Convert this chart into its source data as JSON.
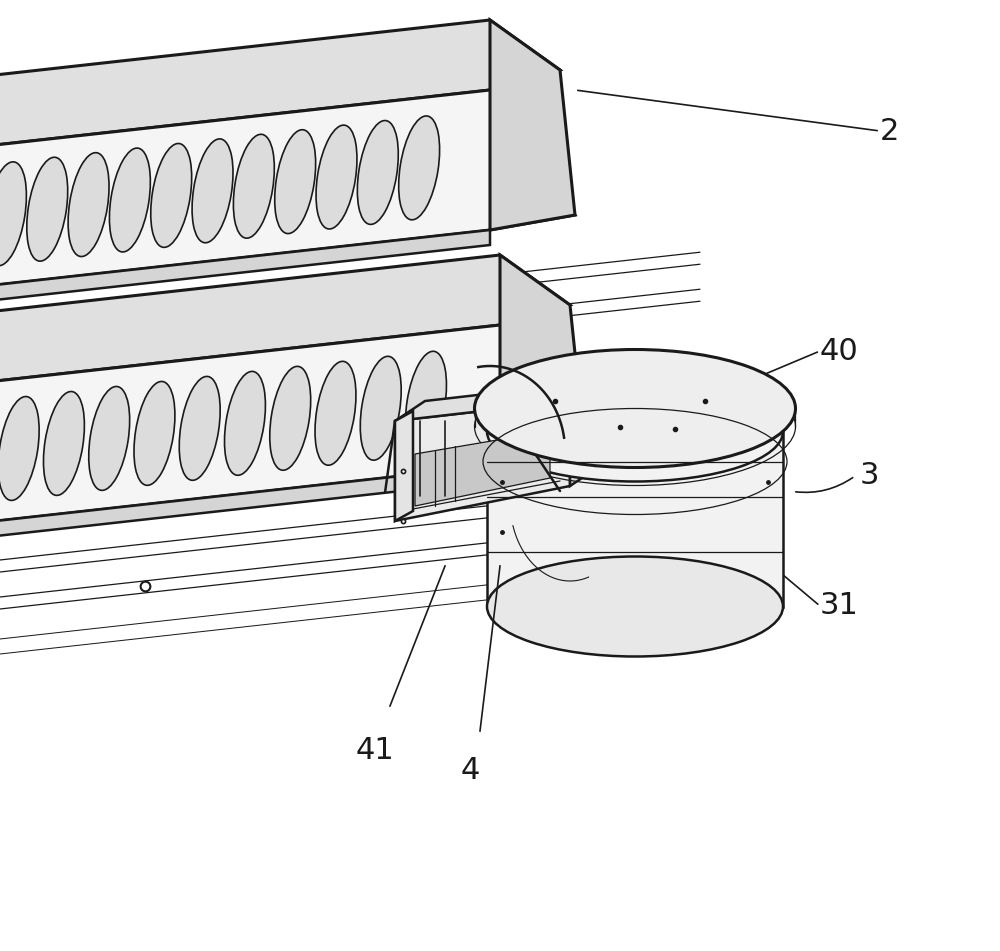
{
  "bg_color": "#ffffff",
  "line_color": "#1a1a1a",
  "lw_main": 1.8,
  "lw_thin": 0.9,
  "lw_thick": 2.2,
  "fig_width": 10.0,
  "fig_height": 9.51,
  "label_fontsize": 22,
  "label_color": "#1a1a1a",
  "beam_face_color": "#f5f5f5",
  "beam_top_color": "#e0e0e0",
  "beam_side_color": "#d5d5d5",
  "cyl_top_color": "#eeeeee",
  "cyl_body_color": "#f2f2f2",
  "bracket_color": "#e8e8e8",
  "shading_color": "#cccccc"
}
